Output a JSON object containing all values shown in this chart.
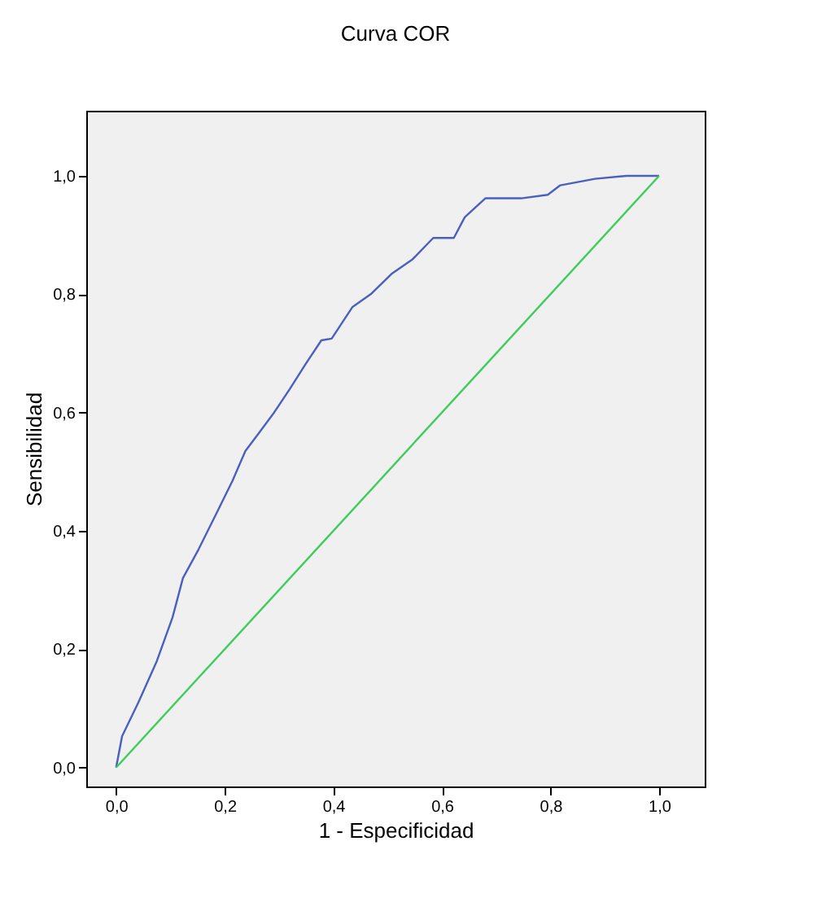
{
  "chart_data": {
    "type": "line",
    "title": "Curva COR",
    "xlabel": "1 - Especificidad",
    "ylabel": "Sensibilidad",
    "series": [
      {
        "color": "#4a5fc0",
        "x": [
          0,
          0.011,
          0.041,
          0.075,
          0.104,
          0.123,
          0.152,
          0.185,
          0.214,
          0.238,
          0.262,
          0.291,
          0.32,
          0.349,
          0.378,
          0.397,
          0.435,
          0.469,
          0.507,
          0.546,
          0.584,
          0.622,
          0.642,
          0.68,
          0.746,
          0.795,
          0.818,
          0.882,
          0.94,
          1
        ],
        "values": [
          0,
          0.053,
          0.11,
          0.18,
          0.254,
          0.32,
          0.369,
          0.43,
          0.484,
          0.535,
          0.564,
          0.6,
          0.64,
          0.682,
          0.722,
          0.725,
          0.778,
          0.8,
          0.834,
          0.859,
          0.895,
          0.895,
          0.93,
          0.962,
          0.962,
          0.968,
          0.984,
          0.995,
          1,
          1
        ]
      },
      {
        "color": "#3ccc5a",
        "x": [
          0,
          1
        ],
        "values": [
          0,
          1
        ]
      }
    ],
    "xlim": [
      -0.055,
      1.084
    ],
    "ylim": [
      -0.032,
      1.11
    ],
    "xticks": [
      {
        "value": 0,
        "label": "0,0"
      },
      {
        "value": 0.2,
        "label": "0,2"
      },
      {
        "value": 0.4,
        "label": "0,4"
      },
      {
        "value": 0.6,
        "label": "0,6"
      },
      {
        "value": 0.8,
        "label": "0,8"
      },
      {
        "value": 1,
        "label": "1,0"
      }
    ],
    "yticks": [
      {
        "value": 0,
        "label": "0,0"
      },
      {
        "value": 0.2,
        "label": "0,2"
      },
      {
        "value": 0.4,
        "label": "0,4"
      },
      {
        "value": 0.6,
        "label": "0,6"
      },
      {
        "value": 0.8,
        "label": "0,8"
      },
      {
        "value": 1,
        "label": "1,0"
      }
    ],
    "grid": false,
    "marker": "none",
    "line_style": "solid"
  }
}
